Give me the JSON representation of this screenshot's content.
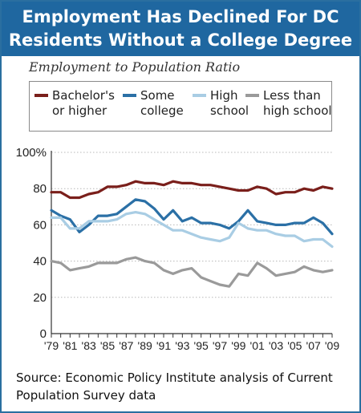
{
  "header": {
    "title_line1": "Employment Has Declined For DC",
    "title_line2": "Residents Without a College Degree"
  },
  "subtitle": "Employment to Population Ratio",
  "legend": [
    {
      "label_line1": "Bachelor's",
      "label_line2": "or higher",
      "color": "#7a1f1b"
    },
    {
      "label_line1": "Some",
      "label_line2": "college",
      "color": "#2b70a6"
    },
    {
      "label_line1": "High",
      "label_line2": "school",
      "color": "#a9cde4"
    },
    {
      "label_line1": "Less than",
      "label_line2": "high school",
      "color": "#9a9a9a"
    }
  ],
  "source": "Source: Economic Policy Institute analysis of Current Population Survey data",
  "chart_data": {
    "type": "line",
    "x": [
      1979,
      1980,
      1981,
      1982,
      1983,
      1984,
      1985,
      1986,
      1987,
      1988,
      1989,
      1990,
      1991,
      1992,
      1993,
      1994,
      1995,
      1996,
      1997,
      1998,
      1999,
      2000,
      2001,
      2002,
      2003,
      2004,
      2005,
      2006,
      2007,
      2008,
      2009
    ],
    "x_tick_labels": [
      "'79",
      "'81",
      "'83",
      "'85",
      "'87",
      "'89",
      "'91",
      "'93",
      "'95",
      "'97",
      "'99",
      "'01",
      "'03",
      "'05",
      "'07",
      "'09"
    ],
    "y_tick_labels": [
      "0",
      "20",
      "40",
      "60",
      "80",
      "100%"
    ],
    "ylim": [
      0,
      100
    ],
    "series": [
      {
        "name": "Bachelor's or higher",
        "color": "#7a1f1b",
        "values": [
          78,
          78,
          75,
          75,
          77,
          78,
          81,
          81,
          82,
          84,
          83,
          83,
          82,
          84,
          83,
          83,
          82,
          82,
          81,
          80,
          79,
          79,
          81,
          80,
          77,
          78,
          78,
          80,
          79,
          81,
          80
        ]
      },
      {
        "name": "Some college",
        "color": "#2b70a6",
        "values": [
          68,
          65,
          63,
          56,
          60,
          65,
          65,
          66,
          70,
          74,
          73,
          69,
          63,
          68,
          62,
          64,
          61,
          61,
          60,
          58,
          62,
          68,
          62,
          61,
          60,
          60,
          61,
          61,
          64,
          61,
          55
        ]
      },
      {
        "name": "High school",
        "color": "#a9cde4",
        "values": [
          64,
          64,
          58,
          58,
          62,
          62,
          62,
          63,
          66,
          67,
          66,
          63,
          60,
          57,
          57,
          55,
          53,
          52,
          51,
          53,
          61,
          58,
          57,
          57,
          55,
          54,
          54,
          51,
          52,
          52,
          48
        ]
      },
      {
        "name": "Less than high school",
        "color": "#9a9a9a",
        "values": [
          40,
          39,
          35,
          36,
          37,
          39,
          39,
          39,
          41,
          42,
          40,
          39,
          35,
          33,
          35,
          36,
          31,
          29,
          27,
          26,
          33,
          32,
          39,
          36,
          32,
          33,
          34,
          37,
          35,
          34,
          35
        ]
      }
    ]
  }
}
